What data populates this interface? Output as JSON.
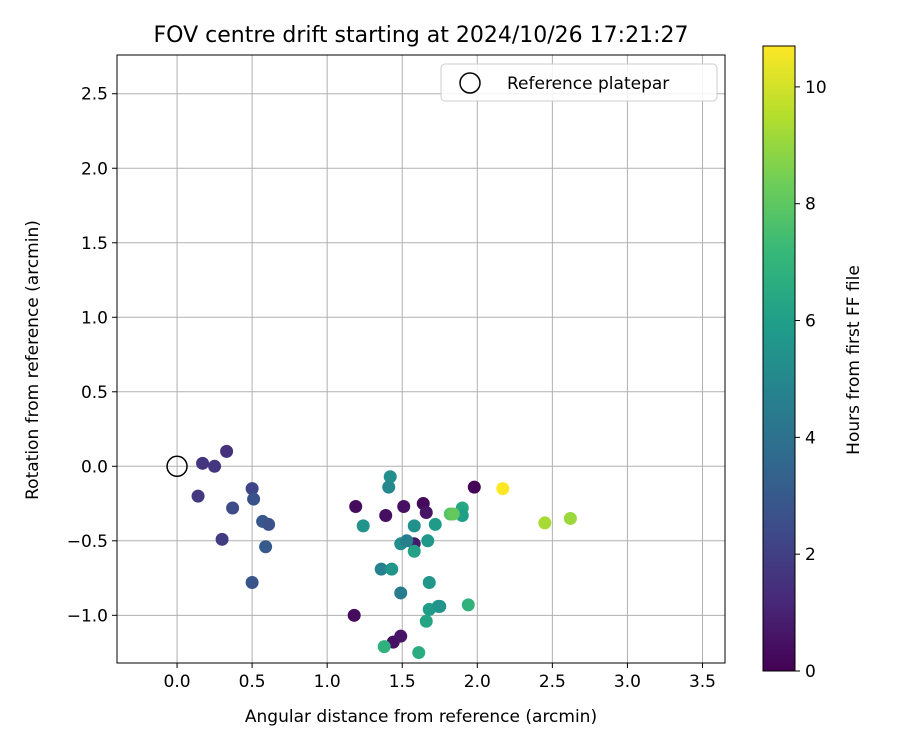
{
  "chart_data": {
    "type": "scatter",
    "title": "FOV centre drift starting at 2024/10/26 17:21:27",
    "xlabel": "Angular distance from reference (arcmin)",
    "ylabel": "Rotation from reference (arcmin)",
    "xlim": [
      -0.4,
      3.65
    ],
    "ylim": [
      -1.32,
      2.76
    ],
    "xticks": [
      0.0,
      0.5,
      1.0,
      1.5,
      2.0,
      2.5,
      3.0,
      3.5
    ],
    "yticks": [
      -1.0,
      -0.5,
      0.0,
      0.5,
      1.0,
      1.5,
      2.0,
      2.5
    ],
    "xtick_labels": [
      "0.0",
      "0.5",
      "1.0",
      "1.5",
      "2.0",
      "2.5",
      "3.0",
      "3.5"
    ],
    "ytick_labels": [
      "−1.0",
      "−0.5",
      "0.0",
      "0.5",
      "1.0",
      "1.5",
      "2.0",
      "2.5"
    ],
    "grid": true,
    "legend": {
      "position": "upper right",
      "entries": [
        {
          "label": "Reference platepar",
          "marker": "open-circle"
        }
      ]
    },
    "reference_point": {
      "x": 0.0,
      "y": 0.0
    },
    "colorbar": {
      "label": "Hours from first FF file",
      "colormap": "viridis",
      "range": [
        0,
        10.7
      ],
      "ticks": [
        0,
        2,
        4,
        6,
        8,
        10
      ],
      "tick_labels": [
        "0",
        "2",
        "4",
        "6",
        "8",
        "10"
      ]
    },
    "points": [
      {
        "x": 1.98,
        "y": -0.14,
        "hours": 0.1
      },
      {
        "x": 1.19,
        "y": -0.27,
        "hours": 0.3
      },
      {
        "x": 1.39,
        "y": -0.33,
        "hours": 0.4
      },
      {
        "x": 1.51,
        "y": -0.27,
        "hours": 0.5
      },
      {
        "x": 1.64,
        "y": -0.25,
        "hours": 0.2
      },
      {
        "x": 1.66,
        "y": -0.31,
        "hours": 0.6
      },
      {
        "x": 1.58,
        "y": -0.52,
        "hours": 0.7
      },
      {
        "x": 1.18,
        "y": -1.0,
        "hours": 0.3
      },
      {
        "x": 1.44,
        "y": -1.18,
        "hours": 0.5
      },
      {
        "x": 1.49,
        "y": -1.14,
        "hours": 0.6
      },
      {
        "x": 0.17,
        "y": 0.02,
        "hours": 1.6
      },
      {
        "x": 0.25,
        "y": 0.0,
        "hours": 1.7
      },
      {
        "x": 0.33,
        "y": 0.1,
        "hours": 1.5
      },
      {
        "x": 0.14,
        "y": -0.2,
        "hours": 1.8
      },
      {
        "x": 0.3,
        "y": -0.49,
        "hours": 1.9
      },
      {
        "x": 0.37,
        "y": -0.28,
        "hours": 2.4
      },
      {
        "x": 0.5,
        "y": -0.15,
        "hours": 2.2
      },
      {
        "x": 0.51,
        "y": -0.22,
        "hours": 2.7
      },
      {
        "x": 0.57,
        "y": -0.37,
        "hours": 2.9
      },
      {
        "x": 0.61,
        "y": -0.39,
        "hours": 2.6
      },
      {
        "x": 0.59,
        "y": -0.54,
        "hours": 3.0
      },
      {
        "x": 0.5,
        "y": -0.78,
        "hours": 2.8
      },
      {
        "x": 1.42,
        "y": -0.07,
        "hours": 5.3
      },
      {
        "x": 1.41,
        "y": -0.14,
        "hours": 5.0
      },
      {
        "x": 1.24,
        "y": -0.4,
        "hours": 5.5
      },
      {
        "x": 1.36,
        "y": -0.69,
        "hours": 4.7
      },
      {
        "x": 1.43,
        "y": -0.69,
        "hours": 5.6
      },
      {
        "x": 1.49,
        "y": -0.52,
        "hours": 5.2
      },
      {
        "x": 1.53,
        "y": -0.5,
        "hours": 4.6
      },
      {
        "x": 1.58,
        "y": -0.4,
        "hours": 5.4
      },
      {
        "x": 1.58,
        "y": -0.57,
        "hours": 6.1
      },
      {
        "x": 1.67,
        "y": -0.5,
        "hours": 5.7
      },
      {
        "x": 1.72,
        "y": -0.39,
        "hours": 5.8
      },
      {
        "x": 1.49,
        "y": -0.85,
        "hours": 4.5
      },
      {
        "x": 1.68,
        "y": -0.78,
        "hours": 5.6
      },
      {
        "x": 1.68,
        "y": -0.96,
        "hours": 5.9
      },
      {
        "x": 1.74,
        "y": -0.94,
        "hours": 5.7
      },
      {
        "x": 1.75,
        "y": -0.94,
        "hours": 5.5
      },
      {
        "x": 1.66,
        "y": -1.04,
        "hours": 6.3
      },
      {
        "x": 1.38,
        "y": -1.21,
        "hours": 6.8
      },
      {
        "x": 1.61,
        "y": -1.25,
        "hours": 6.6
      },
      {
        "x": 1.94,
        "y": -0.93,
        "hours": 6.9
      },
      {
        "x": 1.9,
        "y": -0.28,
        "hours": 6.4
      },
      {
        "x": 1.9,
        "y": -0.33,
        "hours": 6.0
      },
      {
        "x": 1.82,
        "y": -0.32,
        "hours": 7.8
      },
      {
        "x": 1.84,
        "y": -0.32,
        "hours": 8.1
      },
      {
        "x": 2.45,
        "y": -0.38,
        "hours": 9.3
      },
      {
        "x": 2.62,
        "y": -0.35,
        "hours": 9.1
      },
      {
        "x": 2.17,
        "y": -0.15,
        "hours": 10.7
      }
    ]
  }
}
